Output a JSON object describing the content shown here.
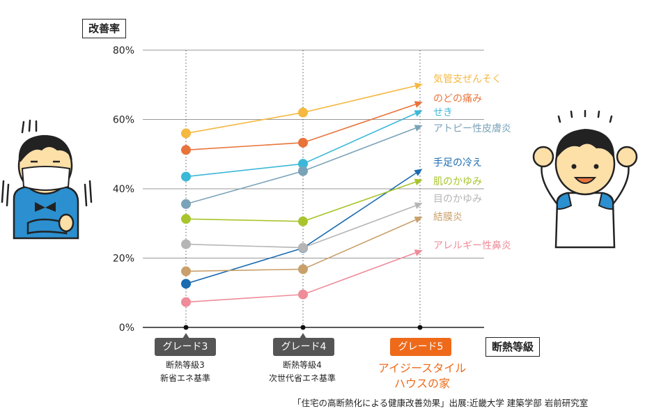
{
  "labels": {
    "y_axis_title": "改善率",
    "x_axis_title": "断熱等級",
    "source": "「住宅の高断熱化による健康改善効果」出展:近畿大学 建築学部 岩前研究室"
  },
  "grades": [
    {
      "label": "グレード3",
      "sub1": "断熱等級3",
      "sub2": "新省エネ基準",
      "color": "#555555"
    },
    {
      "label": "グレード4",
      "sub1": "断熱等級4",
      "sub2": "次世代省エネ基準",
      "color": "#555555"
    },
    {
      "label": "グレード5",
      "sub1": "アイジースタイル",
      "sub2": "ハウスの家",
      "color": "#EE6A1A"
    }
  ],
  "chart_data": {
    "type": "line",
    "categories": [
      "グレード3",
      "グレード4",
      "グレード5"
    ],
    "ylim": [
      0,
      80
    ],
    "yticks": [
      "0%",
      "20%",
      "40%",
      "60%",
      "80%"
    ],
    "grid": true,
    "series": [
      {
        "name": "気管支ぜんそく",
        "values": [
          56,
          62,
          70
        ],
        "color": "#F5B841"
      },
      {
        "name": "のどの痛み",
        "values": [
          51.2,
          53.3,
          64.8
        ],
        "color": "#E8743B"
      },
      {
        "name": "せき",
        "values": [
          43.5,
          47.2,
          62.3
        ],
        "color": "#3BB8D8"
      },
      {
        "name": "アトピー性皮膚炎",
        "values": [
          35.6,
          45.1,
          58
        ],
        "color": "#7BA3B8"
      },
      {
        "name": "手足の冷え",
        "values": [
          12.6,
          22.9,
          45.3
        ],
        "color": "#1A6BB0"
      },
      {
        "name": "肌のかゆみ",
        "values": [
          31.3,
          30.6,
          42.4
        ],
        "color": "#A8C52C"
      },
      {
        "name": "目のかゆみ",
        "values": [
          24,
          23,
          35.6
        ],
        "color": "#B5B5B5"
      },
      {
        "name": "結膜炎",
        "values": [
          16.2,
          16.8,
          31.6
        ],
        "color": "#C9A06B"
      },
      {
        "name": "アレルギー性鼻炎",
        "values": [
          7.3,
          9.5,
          22
        ],
        "color": "#EE8C99"
      }
    ]
  },
  "colors": {
    "grid": "#999999",
    "axis": "#222222",
    "accent": "#EE6A1A",
    "character_blue": "#2B8FD0",
    "skin": "#FDDFA8"
  },
  "characters": {
    "left": "cold-masked-person",
    "right": "happy-cheering-person"
  }
}
